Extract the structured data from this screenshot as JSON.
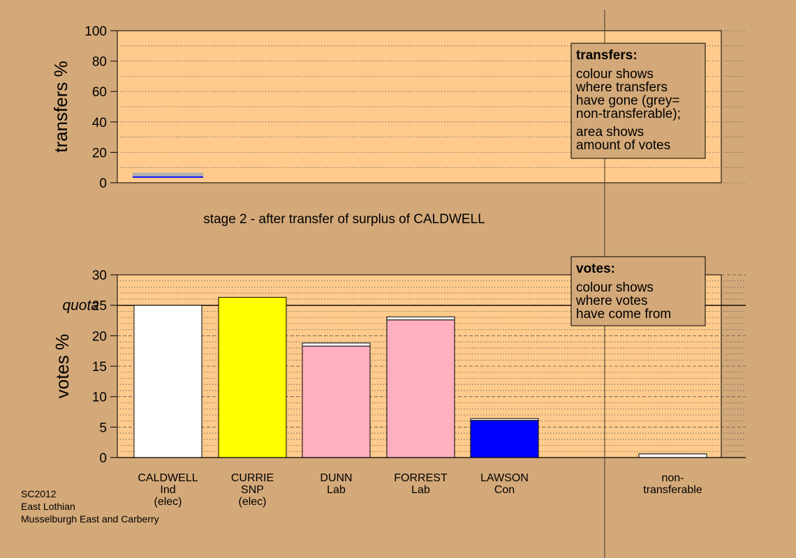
{
  "stage_title": "stage 2 - after transfer of surplus of CALDWELL",
  "footer": [
    "SC2012",
    "East Lothian",
    "Musselburgh East and Carberry"
  ],
  "transfers_box": {
    "title": "transfers:",
    "lines1": [
      "colour shows",
      "where transfers",
      "have gone (grey=",
      "non-transferable);"
    ],
    "lines2": [
      "area shows",
      "amount of votes"
    ]
  },
  "votes_box": {
    "title": "votes:",
    "lines": [
      "colour shows",
      "where votes",
      "have come from"
    ]
  },
  "colors": {
    "background": "#d4a979",
    "plot": "#fecb8c",
    "CALDWELL": "#ffffff",
    "CURRIE": "#ffff00",
    "DUNN": "#ffafbf",
    "FORREST": "#ffafbf",
    "LAWSON": "#0000ff",
    "non-transferable": "#ffffff",
    "grey": "#b0b0b0"
  },
  "chart_data": [
    {
      "type": "bar",
      "ylabel": "transfers %",
      "ylim": [
        0,
        100
      ],
      "yticks": [
        0,
        20,
        40,
        60,
        80,
        100
      ],
      "bars": [
        {
          "candidate": "CALDWELL",
          "segments": [
            {
              "color": "blue",
              "from": 3.3,
              "to": 4.2
            },
            {
              "color": "grey",
              "from": 4.2,
              "to": 6.6
            }
          ]
        }
      ]
    },
    {
      "type": "bar",
      "ylabel": "votes %",
      "ylim": [
        0,
        30
      ],
      "yticks": [
        0,
        5,
        10,
        15,
        20,
        25,
        30
      ],
      "quota": 25,
      "quota_label": "quota",
      "categories": [
        {
          "lines": [
            "CALDWELL",
            "Ind",
            "(elec)"
          ],
          "key": "CALDWELL",
          "value": 25.0,
          "transfer": 0
        },
        {
          "lines": [
            "CURRIE",
            "SNP",
            "(elec)"
          ],
          "key": "CURRIE",
          "value": 26.3,
          "transfer": 0
        },
        {
          "lines": [
            "DUNN",
            "Lab"
          ],
          "key": "DUNN",
          "value": 18.8,
          "transfer": 0.5
        },
        {
          "lines": [
            "FORREST",
            "Lab"
          ],
          "key": "FORREST",
          "value": 23.1,
          "transfer": 0.5
        },
        {
          "lines": [
            "LAWSON",
            "Con"
          ],
          "key": "LAWSON",
          "value": 6.4,
          "transfer": 0.3
        },
        {
          "lines": [
            "non-",
            "transferable"
          ],
          "key": "non-transferable",
          "value": 0.6,
          "transfer": 0.6
        }
      ]
    }
  ]
}
